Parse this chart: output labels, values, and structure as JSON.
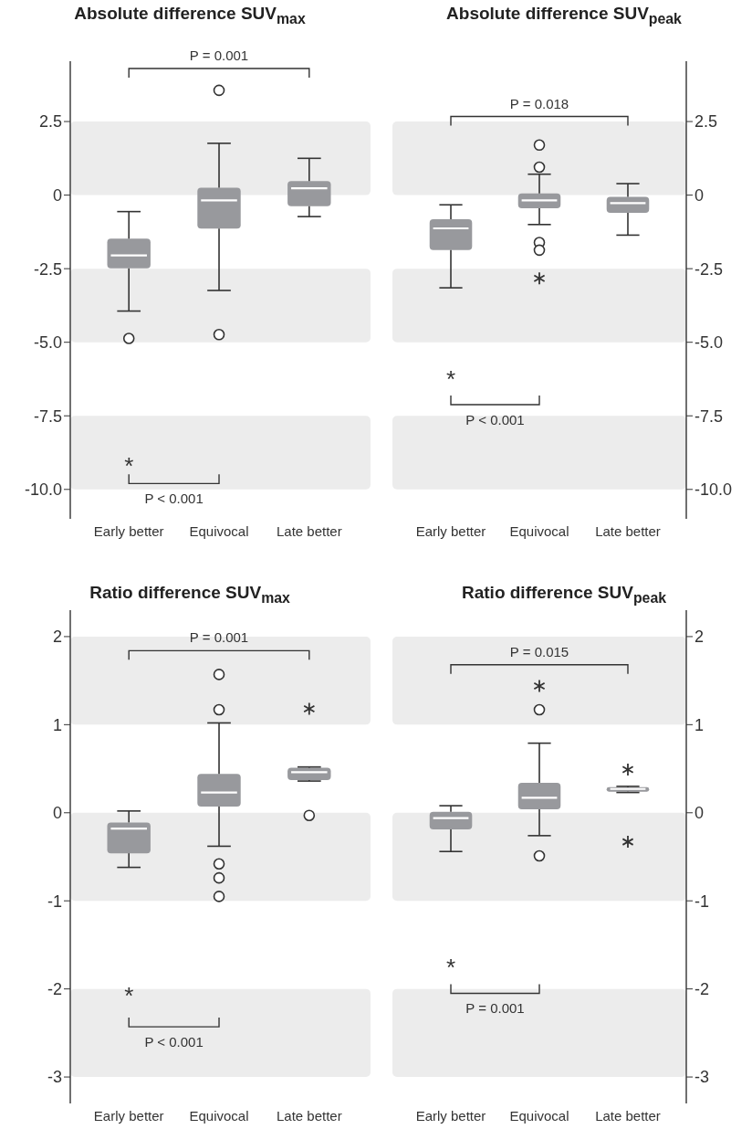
{
  "chart_data": [
    {
      "type": "box",
      "title": "Absolute difference SUV$_{max}$",
      "categories": [
        "Early better",
        "Equivocal",
        "Late better"
      ],
      "ylim": [
        -11,
        4.55
      ],
      "yticks": [
        2.5,
        0,
        -2.5,
        {
          "value": -5,
          "label": "-5.0"
        },
        -7.5,
        {
          "value": -10,
          "label": "-10.0"
        }
      ],
      "series": [
        {
          "color": "#98999d",
          "boxes": [
            {
              "low": -3.94,
              "q1": -2.49,
              "median": -2.05,
              "q3": -1.48,
              "high": -0.56,
              "outliers": [
                -4.87
              ]
            },
            {
              "low": -3.24,
              "q1": -1.14,
              "median": -0.18,
              "q3": 0.25,
              "high": 1.76,
              "outliers": [
                3.56,
                -4.74
              ]
            },
            {
              "low": -0.73,
              "q1": -0.38,
              "median": 0.23,
              "q3": 0.48,
              "high": 1.25
            }
          ]
        }
      ],
      "bands": [
        {
          "axis": "y",
          "from": 0,
          "to": 2.5,
          "color": "#ececec"
        },
        {
          "axis": "y",
          "from": -5,
          "to": -2.5,
          "color": "#ececec"
        },
        {
          "axis": "y",
          "from": -10,
          "to": -7.5,
          "color": "#ececec"
        }
      ],
      "annotations": [
        "P = 0.001",
        "*",
        "P < 0.001"
      ]
    },
    {
      "type": "box",
      "title": "Absolute difference SUV$_{peak}$",
      "categories": [
        "Early better",
        "Equivocal",
        "Late better"
      ],
      "y2lim": [
        -11,
        4.55
      ],
      "y2ticks": [
        2.5,
        0,
        -2.5,
        {
          "value": -5,
          "label": "-5.0"
        },
        -7.5,
        {
          "value": -10,
          "label": "-10.0"
        }
      ],
      "series": [
        {
          "axis": "y2",
          "color": "#98999d",
          "boxes": [
            {
              "low": -3.15,
              "q1": -1.87,
              "median": -1.13,
              "q3": -0.82,
              "high": -0.33
            },
            {
              "low": -1.0,
              "q1": -0.45,
              "median": -0.18,
              "q3": 0.06,
              "high": 0.71,
              "outliers": [
                1.7,
                0.95,
                -1.61,
                -1.87
              ]
            },
            {
              "low": -1.36,
              "q1": -0.6,
              "median": -0.27,
              "q3": -0.06,
              "high": 0.39
            }
          ]
        },
        {
          "type": "scatter",
          "axis": "y2",
          "marker": "cross",
          "color": "#333333",
          "x": [
            "Equivocal"
          ],
          "values": [
            -2.83
          ]
        }
      ],
      "bands": [
        {
          "axis": "y2",
          "from": 0,
          "to": 2.5,
          "color": "#ececec"
        },
        {
          "axis": "y2",
          "from": -5,
          "to": -2.5,
          "color": "#ececec"
        },
        {
          "axis": "y2",
          "from": -10,
          "to": -7.5,
          "color": "#ececec"
        }
      ],
      "annotations": [
        "P = 0.018",
        "*",
        "P < 0.001"
      ]
    },
    {
      "type": "box",
      "title": "Ratio difference SUV$_{max}$",
      "categories": [
        "Early better",
        "Equivocal",
        "Late better"
      ],
      "ylim": [
        -3.3,
        2.3
      ],
      "yticks": [
        2,
        1,
        0,
        -1,
        -2,
        -3
      ],
      "series": [
        {
          "color": "#98999d",
          "boxes": [
            {
              "low": -0.62,
              "q1": -0.46,
              "median": -0.18,
              "q3": -0.11,
              "high": 0.02
            },
            {
              "low": -0.38,
              "q1": 0.07,
              "median": 0.23,
              "q3": 0.44,
              "high": 1.02,
              "outliers": [
                1.57,
                1.17,
                -0.58,
                -0.74,
                -0.95
              ]
            },
            {
              "low": 0.36,
              "q1": 0.37,
              "median": 0.46,
              "q3": 0.51,
              "high": 0.52,
              "outliers": [
                -0.03
              ]
            }
          ]
        },
        {
          "type": "scatter",
          "marker": "cross",
          "color": "#333333",
          "x": [
            "Late better"
          ],
          "values": [
            1.18
          ]
        }
      ],
      "bands": [
        {
          "axis": "y",
          "from": 1,
          "to": 2,
          "color": "#ececec"
        },
        {
          "axis": "y",
          "from": -1,
          "to": 0,
          "color": "#ececec"
        },
        {
          "axis": "y",
          "from": -3,
          "to": -2,
          "color": "#ececec"
        }
      ],
      "annotations": [
        "P = 0.001",
        "*",
        "P < 0.001"
      ]
    },
    {
      "type": "box",
      "title": "Ratio difference SUV$_{peak}$",
      "categories": [
        "Early better",
        "Equivocal",
        "Late better"
      ],
      "y2lim": [
        -3.3,
        2.3
      ],
      "y2ticks": [
        2,
        1,
        0,
        -1,
        -2,
        -3
      ],
      "series": [
        {
          "axis": "y2",
          "color": "#98999d",
          "boxes": [
            {
              "low": -0.44,
              "q1": -0.19,
              "median": -0.06,
              "q3": 0.01,
              "high": 0.08
            },
            {
              "low": -0.26,
              "q1": 0.04,
              "median": 0.17,
              "q3": 0.34,
              "high": 0.79,
              "outliers": [
                1.17,
                -0.49
              ]
            },
            {
              "low": 0.23,
              "q1": 0.24,
              "median": 0.27,
              "q3": 0.29,
              "high": 0.3
            }
          ]
        },
        {
          "type": "scatter",
          "axis": "y2",
          "marker": "cross",
          "color": "#333333",
          "x": [
            "Equivocal",
            "Late better",
            "Late better"
          ],
          "values": [
            1.44,
            0.49,
            -0.33
          ]
        }
      ],
      "bands": [
        {
          "axis": "y2",
          "from": 1,
          "to": 2,
          "color": "#ececec"
        },
        {
          "axis": "y2",
          "from": -1,
          "to": 0,
          "color": "#ececec"
        },
        {
          "axis": "y2",
          "from": -3,
          "to": -2,
          "color": "#ececec"
        }
      ],
      "annotations": [
        "P = 0.015",
        "*",
        "P = 0.001"
      ]
    }
  ]
}
